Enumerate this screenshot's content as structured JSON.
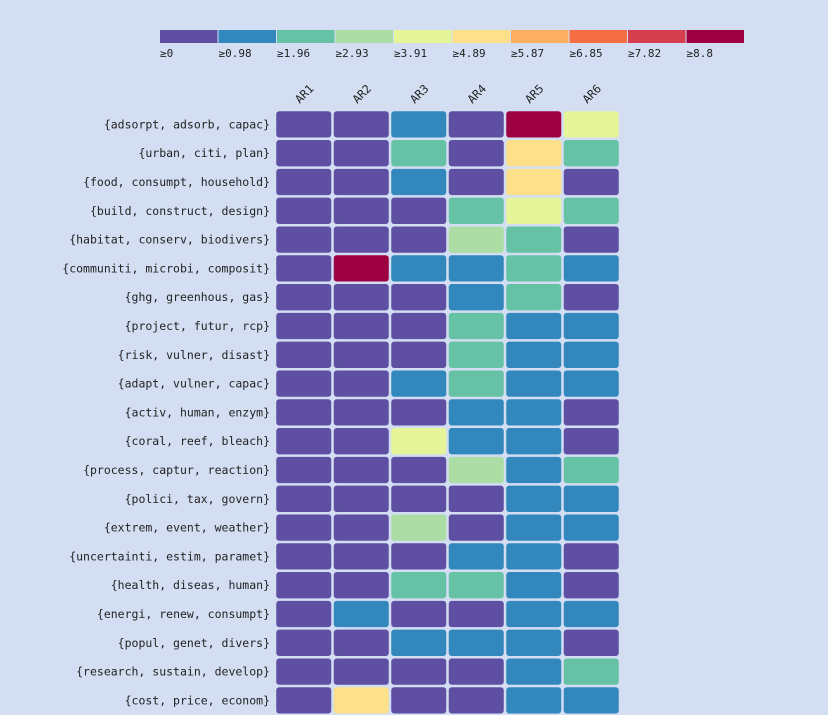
{
  "chart_data": {
    "type": "heatmap",
    "title": "",
    "xlabel": "",
    "ylabel": "",
    "legend_placement": "top",
    "columns": [
      "AR1",
      "AR2",
      "AR3",
      "AR4",
      "AR5",
      "AR6"
    ],
    "rows": [
      "{adsorpt, adsorb, capac}",
      "{urban, citi, plan}",
      "{food, consumpt, household}",
      "{build, construct, design}",
      "{habitat, conserv, biodivers}",
      "{communiti, microbi, composit}",
      "{ghg, greenhous, gas}",
      "{project, futur, rcp}",
      "{risk, vulner, disast}",
      "{adapt, vulner, capac}",
      "{activ, human, enzym}",
      "{coral, reef, bleach}",
      "{process, captur, reaction}",
      "{polici, tax, govern}",
      "{extrem, event, weather}",
      "{uncertainti, estim, paramet}",
      "{health, diseas, human}",
      "{energi, renew, consumpt}",
      "{popul, genet, divers}",
      "{research, sustain, develop}",
      "{cost, price, econom}"
    ],
    "values": [
      [
        0.5,
        0.5,
        1.5,
        0.5,
        9.0,
        4.3
      ],
      [
        0.5,
        0.5,
        2.4,
        0.5,
        5.3,
        2.4
      ],
      [
        0.5,
        0.5,
        1.5,
        0.5,
        5.3,
        0.5
      ],
      [
        0.5,
        0.5,
        0.5,
        2.4,
        4.3,
        2.4
      ],
      [
        0.5,
        0.5,
        0.5,
        3.4,
        2.4,
        0.5
      ],
      [
        0.5,
        9.0,
        1.5,
        1.5,
        2.4,
        1.5
      ],
      [
        0.5,
        0.5,
        0.5,
        1.5,
        2.4,
        0.5
      ],
      [
        0.5,
        0.5,
        0.5,
        2.4,
        1.5,
        1.5
      ],
      [
        0.5,
        0.5,
        0.5,
        2.4,
        1.5,
        1.5
      ],
      [
        0.5,
        0.5,
        1.5,
        2.4,
        1.5,
        1.5
      ],
      [
        0.5,
        0.5,
        0.5,
        1.5,
        1.5,
        0.5
      ],
      [
        0.5,
        0.5,
        4.3,
        1.5,
        1.5,
        0.5
      ],
      [
        0.5,
        0.5,
        0.5,
        3.4,
        1.5,
        2.4
      ],
      [
        0.5,
        0.5,
        0.5,
        0.5,
        1.5,
        1.5
      ],
      [
        0.5,
        0.5,
        3.4,
        0.5,
        1.5,
        1.5
      ],
      [
        0.5,
        0.5,
        0.5,
        1.5,
        1.5,
        0.5
      ],
      [
        0.5,
        0.5,
        2.4,
        2.4,
        1.5,
        0.5
      ],
      [
        0.5,
        1.5,
        0.5,
        0.5,
        1.5,
        1.5
      ],
      [
        0.5,
        0.5,
        1.5,
        1.5,
        1.5,
        0.5
      ],
      [
        0.5,
        0.5,
        0.5,
        0.5,
        1.5,
        2.4
      ],
      [
        0.5,
        5.3,
        0.5,
        0.5,
        1.5,
        1.5
      ]
    ],
    "legend": {
      "labels": [
        "≥0",
        "≥0.98",
        "≥1.96",
        "≥2.93",
        "≥3.91",
        "≥4.89",
        "≥5.87",
        "≥6.85",
        "≥7.82",
        "≥8.8"
      ],
      "thresholds": [
        0,
        0.98,
        1.96,
        2.93,
        3.91,
        4.89,
        5.87,
        6.85,
        7.82,
        8.8
      ],
      "colors": [
        "#5e4fa2",
        "#3288bd",
        "#66c2a5",
        "#abdda4",
        "#e6f598",
        "#fee08b",
        "#fdae61",
        "#f46d43",
        "#d53e4f",
        "#9e0142"
      ]
    }
  }
}
